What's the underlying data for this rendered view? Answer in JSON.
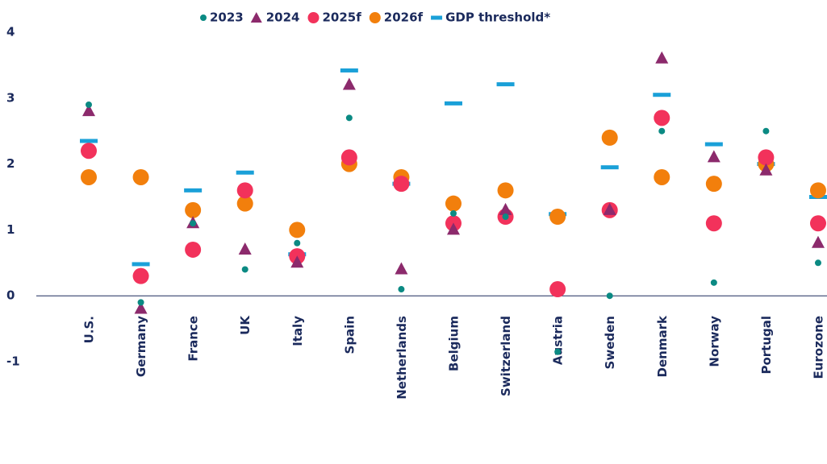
{
  "chart_data": {
    "type": "scatter",
    "categories": [
      "U.S.",
      "Germany",
      "France",
      "UK",
      "Italy",
      "Spain",
      "Netherlands",
      "Belgium",
      "Switzerland",
      "Austria",
      "Sweden",
      "Denmark",
      "Norway",
      "Portugal",
      "Eurozone"
    ],
    "series": [
      {
        "name": "2023",
        "color": "#0b8a83",
        "marker": "dot",
        "values": [
          2.9,
          -0.1,
          1.1,
          0.4,
          0.8,
          2.7,
          0.1,
          1.25,
          1.2,
          -0.85,
          0.0,
          2.5,
          0.2,
          2.5,
          0.5
        ]
      },
      {
        "name": "2024",
        "color": "#8c2a6c",
        "marker": "triangle",
        "values": [
          2.8,
          -0.2,
          1.1,
          0.7,
          0.5,
          3.2,
          0.4,
          1.0,
          1.3,
          null,
          1.3,
          3.6,
          2.1,
          1.9,
          0.8
        ]
      },
      {
        "name": "2025f",
        "color": "#f2325b",
        "marker": "circle",
        "values": [
          2.2,
          0.3,
          0.7,
          1.6,
          0.6,
          2.1,
          1.7,
          1.1,
          1.2,
          0.1,
          1.3,
          2.7,
          1.1,
          2.1,
          1.1
        ]
      },
      {
        "name": "2026f",
        "color": "#f27f0c",
        "marker": "circle",
        "values": [
          1.8,
          1.8,
          1.3,
          1.4,
          1.0,
          2.0,
          1.8,
          1.4,
          1.6,
          1.2,
          2.4,
          1.8,
          1.7,
          2.0,
          1.6
        ]
      },
      {
        "name": "GDP threshold*",
        "color": "#1aa0d8",
        "marker": "dash",
        "values": [
          2.35,
          0.48,
          1.6,
          1.87,
          0.63,
          3.42,
          1.7,
          2.92,
          3.21,
          1.24,
          1.95,
          3.05,
          2.3,
          2.0,
          1.5
        ]
      }
    ],
    "ylim": [
      -1,
      4
    ],
    "yticks": [
      -1,
      0,
      1,
      2,
      3,
      4
    ],
    "grid": false,
    "legend": "top"
  }
}
